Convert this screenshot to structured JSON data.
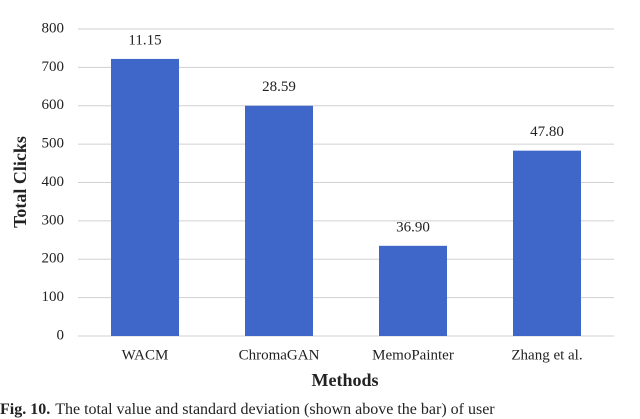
{
  "chart_data": {
    "type": "bar",
    "x_label": "Methods",
    "y_label": "Total Clicks",
    "categories": [
      "WACM",
      "ChromaGAN",
      "MemoPainter",
      "Zhang et al."
    ],
    "values": [
      722,
      600,
      235,
      483
    ],
    "annotations": [
      "11.15",
      "28.59",
      "36.90",
      "47.80"
    ],
    "color": "#3f66c9",
    "ylim": [
      0,
      800
    ],
    "yticks": [
      0,
      100,
      200,
      300,
      400,
      500,
      600,
      700,
      800
    ],
    "grid": true,
    "caption_label": "Fig. 10.",
    "caption": "The total value and standard deviation (shown above the bar) of user"
  }
}
